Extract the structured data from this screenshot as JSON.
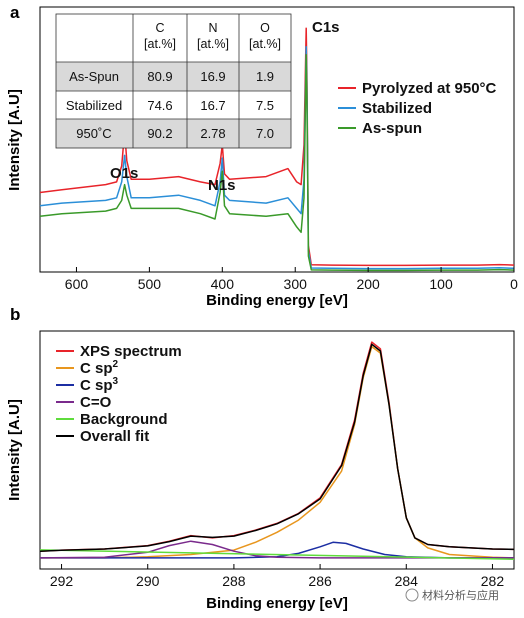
{
  "chart_data": [
    {
      "panel": "a",
      "type": "line",
      "xlabel": "Binding energy [eV]",
      "ylabel": "Intensity [A.U]",
      "xlim": [
        650,
        0
      ],
      "x_ticks": [
        600,
        500,
        400,
        300,
        200,
        100,
        0
      ],
      "legend_position": "right",
      "annotations": [
        {
          "text": "C1s",
          "x": 270
        },
        {
          "text": "O1s",
          "x": 532
        },
        {
          "text": "N1s",
          "x": 400
        }
      ],
      "series": [
        {
          "name": "Pyrolyzed at 950°C",
          "color": "#e8242a",
          "x": [
            650,
            620,
            560,
            545,
            538,
            534,
            531,
            525,
            500,
            460,
            430,
            410,
            403,
            400,
            397,
            390,
            340,
            310,
            298,
            292,
            288,
            285,
            284,
            282,
            278,
            250,
            200,
            150,
            100,
            50,
            20,
            0
          ],
          "y": [
            30,
            31,
            33,
            34,
            40,
            53,
            42,
            35,
            35,
            36,
            34,
            33,
            41,
            48,
            37,
            35,
            36,
            39,
            34,
            33,
            48,
            92,
            75,
            10,
            2.7,
            2.6,
            2.5,
            2.5,
            2.6,
            2.6,
            2.8,
            2.6
          ]
        },
        {
          "name": "Stabilized",
          "color": "#2b8fd8",
          "x": [
            650,
            620,
            560,
            545,
            538,
            534,
            531,
            525,
            500,
            460,
            430,
            410,
            403,
            400,
            397,
            390,
            340,
            310,
            298,
            292,
            288,
            285,
            284,
            282,
            278,
            250,
            200,
            150,
            100,
            50,
            20,
            0
          ],
          "y": [
            25,
            26,
            27,
            28,
            34,
            44,
            36,
            28,
            28,
            29,
            27,
            25,
            34,
            43,
            29,
            27,
            26,
            28,
            24,
            22,
            35,
            85,
            70,
            8,
            1.5,
            1.4,
            1.3,
            1.3,
            1.4,
            1.4,
            1.6,
            1.4
          ]
        },
        {
          "name": "As-spun",
          "color": "#3a9a2a",
          "x": [
            650,
            620,
            560,
            545,
            538,
            534,
            531,
            525,
            500,
            460,
            430,
            410,
            403,
            400,
            397,
            390,
            340,
            310,
            298,
            292,
            288,
            285,
            284,
            282,
            278,
            250,
            200,
            150,
            100,
            50,
            20,
            0
          ],
          "y": [
            21,
            22,
            23,
            24,
            27,
            33,
            29,
            24,
            24,
            24,
            22,
            20,
            30,
            38,
            25,
            22,
            21,
            22,
            17,
            15,
            28,
            82,
            66,
            6,
            0.8,
            0.7,
            0.6,
            0.6,
            0.7,
            0.7,
            0.9,
            0.7
          ]
        }
      ],
      "table": {
        "columns": [
          "",
          "C\n[at.%]",
          "N\n[at.%]",
          "O\n[at.%]"
        ],
        "rows": [
          {
            "label": "As-Spun",
            "values": [
              "80.9",
              "16.9",
              "1.9"
            ]
          },
          {
            "label": "Stabilized",
            "values": [
              "74.6",
              "16.7",
              "7.5"
            ]
          },
          {
            "label": "950˚C",
            "values": [
              "90.2",
              "2.78",
              "7.0"
            ]
          }
        ]
      }
    },
    {
      "panel": "b",
      "type": "line",
      "xlabel": "Binding energy [eV]",
      "ylabel": "Intensity [A.U]",
      "xlim": [
        292.5,
        281.5
      ],
      "x_ticks": [
        292,
        290,
        288,
        286,
        284,
        282
      ],
      "legend_position": "top-left",
      "series": [
        {
          "name": "XPS spectrum",
          "color": "#e8242a",
          "x": [
            292.5,
            292,
            291,
            290,
            289.5,
            289,
            288.5,
            288,
            287.5,
            287,
            286.5,
            286,
            285.5,
            285.2,
            285,
            284.8,
            284.6,
            284.4,
            284.2,
            284,
            283.8,
            283.5,
            283,
            282.5,
            282,
            281.5
          ],
          "y": [
            3,
            3.5,
            4,
            5.5,
            7.5,
            10,
            9,
            10,
            12.5,
            15.5,
            20,
            27,
            42,
            62,
            83,
            97,
            94,
            70,
            40,
            18,
            9,
            6,
            5,
            4.5,
            4,
            3.8
          ]
        },
        {
          "name": "C sp²",
          "color": "#e8961e",
          "x": [
            292.5,
            291,
            290,
            289,
            288,
            287.5,
            287,
            286.5,
            286,
            285.5,
            285.2,
            285,
            284.8,
            284.6,
            284.4,
            284.2,
            284,
            283.8,
            283.5,
            283,
            282,
            281.5
          ],
          "y": [
            0,
            0,
            0.5,
            1.5,
            3.5,
            7,
            11.5,
            17,
            25,
            39,
            60,
            81,
            95,
            92,
            69,
            40,
            18,
            9,
            4.5,
            1.5,
            0.3,
            0
          ]
        },
        {
          "name": "C sp³",
          "color": "#1c2ea3",
          "x": [
            292.5,
            288,
            287,
            286.5,
            286,
            285.7,
            285.4,
            285,
            284.5,
            284,
            283,
            281.5
          ],
          "y": [
            0,
            0,
            0.5,
            2,
            5,
            7,
            6.5,
            4,
            1.5,
            0.5,
            0,
            0
          ]
        },
        {
          "name": "C=O",
          "color": "#7a2a8c",
          "x": [
            292.5,
            291,
            290,
            289.5,
            289,
            288.5,
            288,
            287.5,
            287,
            286,
            281.5
          ],
          "y": [
            0,
            0.3,
            2.5,
            5.5,
            7.5,
            6,
            3,
            1,
            0.3,
            0,
            0
          ]
        },
        {
          "name": "Background",
          "color": "#5fdc3c",
          "x": [
            292.5,
            281.5
          ],
          "y": [
            3.6,
            -0.6
          ]
        },
        {
          "name": "Overall fit",
          "color": "#000000",
          "x": [
            292.5,
            292,
            291,
            290,
            289.5,
            289,
            288.5,
            288,
            287.5,
            287,
            286.5,
            286,
            285.5,
            285.2,
            285,
            284.8,
            284.6,
            284.4,
            284.2,
            284,
            283.8,
            283.5,
            283,
            282.5,
            282,
            281.5
          ],
          "y": [
            3,
            3.4,
            4,
            5.4,
            7.3,
            9.8,
            9.2,
            9.8,
            12.3,
            15.3,
            19.8,
            26.5,
            41.5,
            61,
            82,
            96,
            93,
            69,
            40,
            18,
            9,
            6,
            5,
            4.5,
            4,
            3.8
          ]
        }
      ]
    }
  ],
  "watermark": "材料分析与应用"
}
